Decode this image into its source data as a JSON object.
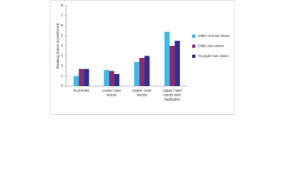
{
  "chart_data": {
    "type": "bar",
    "y_label": "Ranking (lower is preferred)",
    "categories": [
      "Numerals",
      "Lower case words",
      "Upper case words",
      "Upper case words with highlights"
    ],
    "series": [
      {
        "name": "Older normal vision",
        "color": "#3db9ea",
        "values": [
          1.0,
          1.6,
          2.4,
          5.4
        ]
      },
      {
        "name": "Older low vision",
        "color": "#8e2a6f",
        "values": [
          1.7,
          1.5,
          2.8,
          4.0
        ]
      },
      {
        "name": "Younger low vision",
        "color": "#2e3192",
        "values": [
          1.7,
          1.2,
          3.0,
          4.5
        ]
      }
    ],
    "ylim": [
      0,
      8
    ],
    "yticks": [
      0,
      1,
      2,
      3,
      4,
      5,
      6,
      7,
      8
    ],
    "legend": "right"
  }
}
